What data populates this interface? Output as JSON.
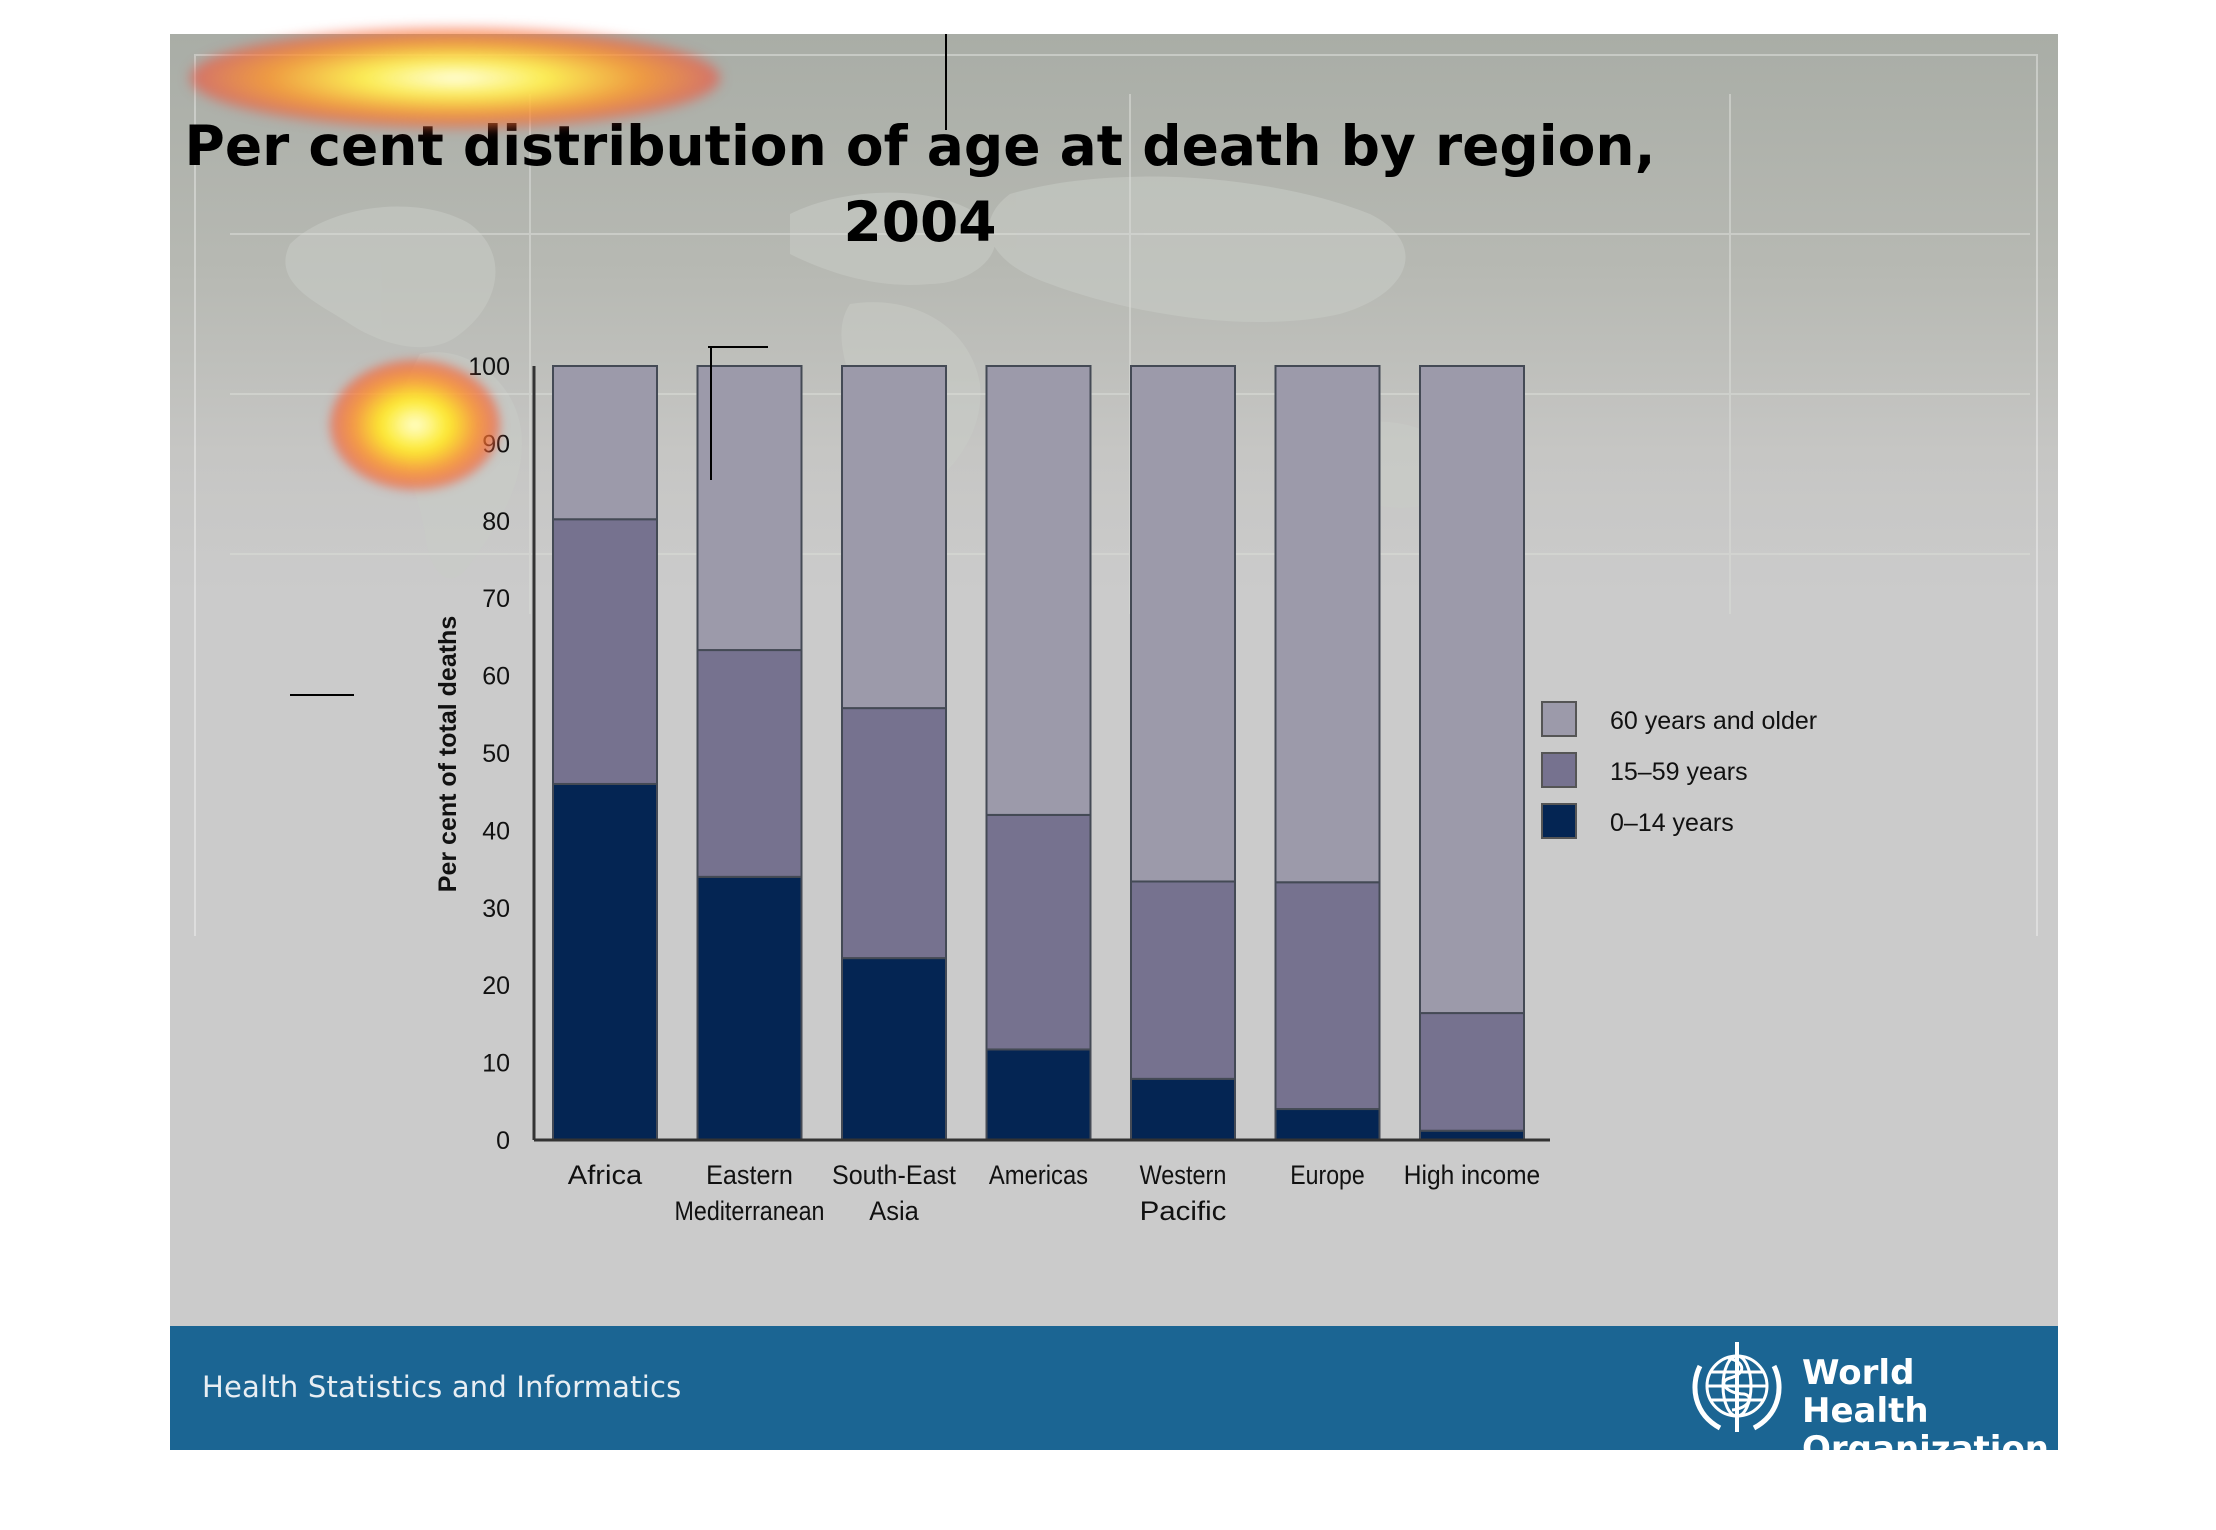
{
  "title_line1": "Per cent distribution of age at death by region,",
  "title_line2": "2004",
  "footer": {
    "text": "Health Statistics and Informatics",
    "logo_line1": "World Health",
    "logo_line2": "Organization"
  },
  "colors": {
    "age_60_plus": "#9c9aaa",
    "age_15_59": "#76728f",
    "age_0_14": "#042553",
    "footer_band": "#1b6593"
  },
  "chart_data": {
    "type": "bar",
    "stacked": true,
    "title": "Per cent distribution of age at death by region, 2004",
    "ylabel": "Per cent of total deaths",
    "xlabel": "",
    "ylim": [
      0,
      100
    ],
    "yticks": [
      0,
      10,
      20,
      30,
      40,
      50,
      60,
      70,
      80,
      90,
      100
    ],
    "categories": [
      [
        "Africa"
      ],
      [
        "Eastern",
        "Mediterranean"
      ],
      [
        "South-East",
        "Asia"
      ],
      [
        "Americas"
      ],
      [
        "Western",
        "Pacific"
      ],
      [
        "Europe"
      ],
      [
        "High income"
      ]
    ],
    "series": [
      {
        "name": "0–14 years",
        "color": "#042553",
        "values": [
          46,
          34,
          23.5,
          11.7,
          7.9,
          4.0,
          1.2
        ]
      },
      {
        "name": "15–59 years",
        "color": "#76728f",
        "values": [
          34.2,
          29.3,
          32.3,
          30.3,
          25.5,
          29.3,
          15.2
        ]
      },
      {
        "name": "60 years and older",
        "color": "#9c9aaa",
        "values": [
          19.8,
          36.7,
          44.2,
          58.0,
          66.6,
          66.7,
          83.6
        ]
      }
    ],
    "legend_order": [
      "60 years and older",
      "15–59 years",
      "0–14 years"
    ],
    "legend_position": "right",
    "grid": false
  }
}
